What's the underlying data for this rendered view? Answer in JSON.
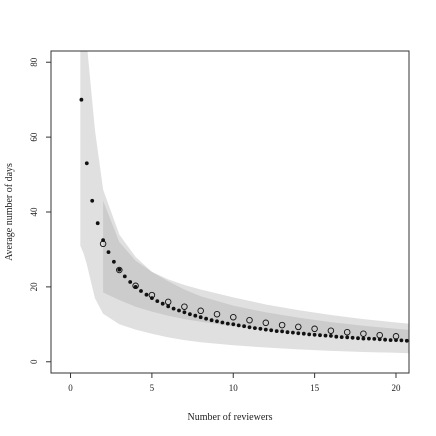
{
  "chart_data": {
    "type": "scatter",
    "xlabel": "Number of reviewers",
    "ylabel": "Average number of days",
    "xlim": [
      -1.2,
      20.8
    ],
    "ylim": [
      -3,
      83
    ],
    "xticks": [
      0,
      5,
      10,
      15,
      20
    ],
    "yticks": [
      0,
      20,
      40,
      60,
      80
    ],
    "grid": false,
    "colors": {
      "outer_band": "#e0e0e0",
      "inner_band": "#cccccc",
      "filled_points": "#111111",
      "open_points": "#111111"
    },
    "bands": [
      {
        "level": "outer",
        "x_start": 0.6,
        "x": [
          0.6,
          0.8,
          1,
          1.5,
          2,
          3,
          4,
          5,
          6,
          7,
          8,
          10,
          12,
          14,
          16,
          18,
          20,
          20.8
        ],
        "upper": [
          120,
          100,
          85,
          62,
          46,
          34,
          28,
          24,
          22,
          20.5,
          19.3,
          17.2,
          15.3,
          13.8,
          12.5,
          11.4,
          10.5,
          10.2
        ],
        "lower": [
          31,
          29,
          26,
          17,
          12.8,
          10,
          8.6,
          7.5,
          6.5,
          5.8,
          5.2,
          4.4,
          3.8,
          3.3,
          2.9,
          2.6,
          2.4,
          2.3
        ]
      },
      {
        "level": "inner",
        "x_start": 2,
        "x": [
          2,
          3,
          4,
          5,
          6,
          7,
          8,
          10,
          12,
          14,
          16,
          18,
          20,
          20.8
        ],
        "upper": [
          43,
          32,
          27,
          24,
          21.5,
          19.3,
          17.5,
          15,
          13.2,
          11.8,
          10.6,
          9.6,
          8.8,
          8.5
        ],
        "lower": [
          18.5,
          16.5,
          14.7,
          13.4,
          12.3,
          11.4,
          10.7,
          9.5,
          8.5,
          7.7,
          7.0,
          6.4,
          5.9,
          5.7
        ]
      }
    ],
    "series": [
      {
        "marker": "filled",
        "x": [
          0.667,
          1.0,
          1.333,
          1.667,
          2.0,
          2.333,
          2.667,
          3.0,
          3.333,
          3.667,
          4.0,
          4.333,
          4.667,
          5.0,
          5.333,
          5.667,
          6.0,
          6.333,
          6.667,
          7.0,
          7.333,
          7.667,
          8.0,
          8.333,
          8.667,
          9.0,
          9.333,
          9.667,
          10.0,
          10.333,
          10.667,
          11.0,
          11.333,
          11.667,
          12.0,
          12.333,
          12.667,
          13.0,
          13.333,
          13.667,
          14.0,
          14.333,
          14.667,
          15.0,
          15.333,
          15.667,
          16.0,
          16.333,
          16.667,
          17.0,
          17.333,
          17.667,
          18.0,
          18.333,
          18.667,
          19.0,
          19.333,
          19.667,
          20.0,
          20.333,
          20.667
        ],
        "y": [
          70,
          53,
          43,
          37,
          32.5,
          29.3,
          26.7,
          24.6,
          22.8,
          21.3,
          20.0,
          18.9,
          17.9,
          17.0,
          16.2,
          15.5,
          14.8,
          14.2,
          13.7,
          13.2,
          12.7,
          12.3,
          11.9,
          11.5,
          11.1,
          10.8,
          10.5,
          10.2,
          10.0,
          9.7,
          9.5,
          9.2,
          9.0,
          8.8,
          8.6,
          8.4,
          8.2,
          8.1,
          7.9,
          7.8,
          7.6,
          7.5,
          7.3,
          7.2,
          7.1,
          7.0,
          6.9,
          6.7,
          6.6,
          6.5,
          6.4,
          6.3,
          6.2,
          6.2,
          6.1,
          6.0,
          5.9,
          5.8,
          5.8,
          5.7,
          5.6
        ]
      },
      {
        "marker": "open",
        "x": [
          2,
          3,
          4,
          5,
          6,
          7,
          8,
          9,
          10,
          11,
          12,
          13,
          14,
          15,
          16,
          17,
          18,
          19,
          20
        ],
        "y": [
          31.5,
          24.5,
          20.3,
          17.8,
          16.0,
          14.7,
          13.6,
          12.7,
          11.9,
          11.1,
          10.4,
          9.8,
          9.3,
          8.8,
          8.3,
          7.9,
          7.5,
          7.1,
          6.8
        ]
      }
    ]
  }
}
